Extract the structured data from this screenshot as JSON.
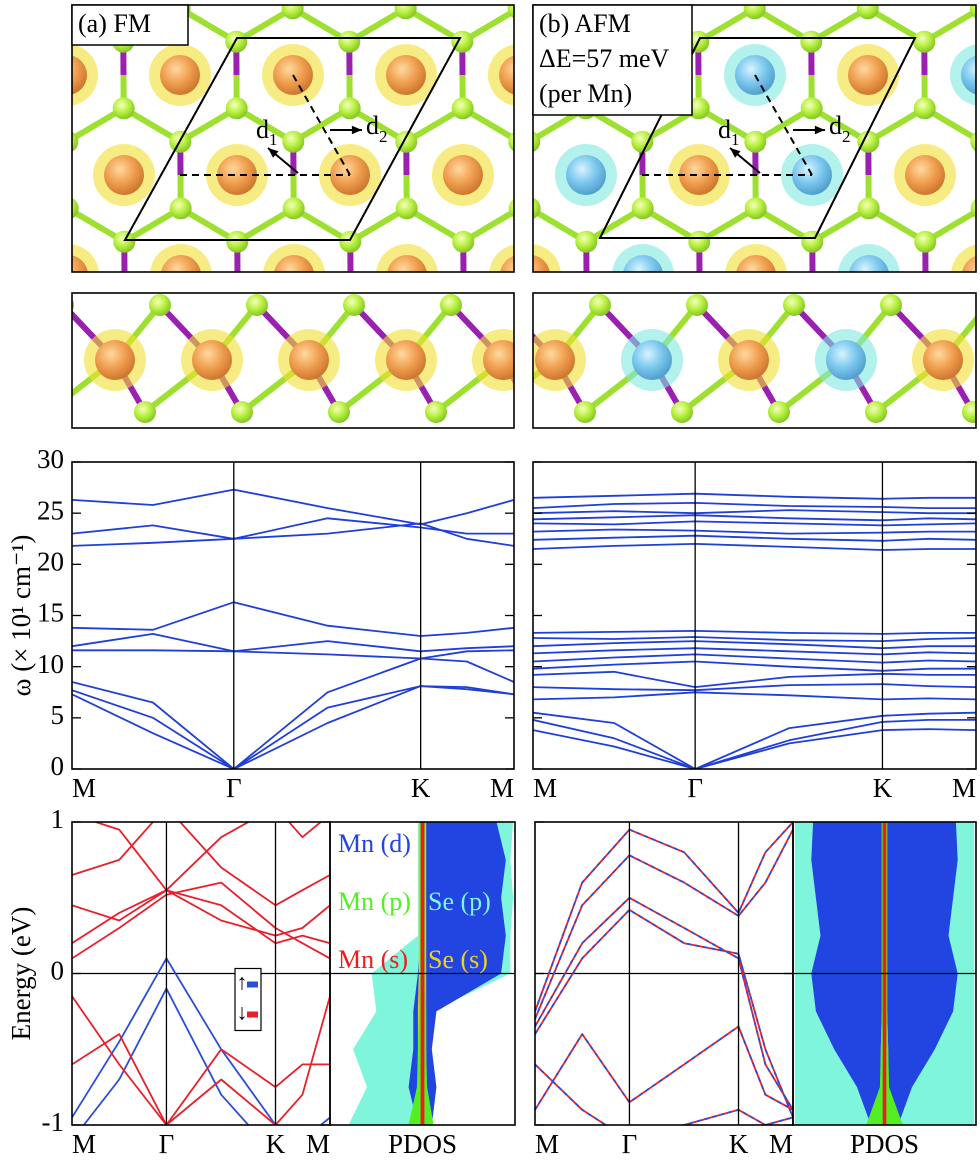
{
  "structures": {
    "fm": {
      "label": "(a) FM",
      "bond_labels": [
        {
          "text": "d",
          "sub": "1"
        },
        {
          "text": "d",
          "sub": "2"
        }
      ]
    },
    "afm": {
      "label": "(b) AFM",
      "energy": "ΔE=57 meV",
      "note": "(per Mn)",
      "bond_labels": [
        {
          "text": "d",
          "sub": "1"
        },
        {
          "text": "d",
          "sub": "2"
        }
      ]
    }
  },
  "chart_data": [
    {
      "type": "line",
      "ylabel": "ω (× 10¹ cm⁻¹)",
      "color": "#1f3fd8",
      "x": [
        0,
        0.5,
        1,
        1.58,
        2.155,
        2.44,
        2.732
      ],
      "xlim": [
        0,
        2.732
      ],
      "xticks": [
        {
          "value": 0,
          "label": "M"
        },
        {
          "value": 1,
          "label": "Γ"
        },
        {
          "value": 2.155,
          "label": "K"
        },
        {
          "value": 2.732,
          "label": "M"
        }
      ],
      "ylim": [
        0,
        30
      ],
      "yticks": [
        0,
        5,
        10,
        15,
        20,
        25,
        30
      ],
      "series": [
        {
          "values": [
            26.3,
            25.8,
            27.3,
            25.5,
            23.9,
            25.0,
            26.3
          ]
        },
        {
          "values": [
            23.0,
            23.8,
            22.5,
            24.5,
            23.6,
            23.0,
            23.0
          ]
        },
        {
          "values": [
            21.8,
            22.1,
            22.5,
            23.0,
            24.0,
            22.5,
            21.8
          ]
        },
        {
          "values": [
            13.8,
            13.6,
            16.3,
            14.0,
            13.0,
            13.3,
            13.8
          ]
        },
        {
          "values": [
            12.0,
            13.2,
            11.5,
            12.5,
            11.5,
            11.8,
            12.0
          ]
        },
        {
          "values": [
            11.6,
            11.6,
            11.5,
            11.2,
            10.8,
            11.5,
            11.6
          ]
        },
        {
          "values": [
            8.5,
            6.5,
            0,
            7.5,
            10.8,
            10.5,
            8.5
          ]
        },
        {
          "values": [
            7.7,
            5.0,
            0,
            6.0,
            8.1,
            8.0,
            7.3
          ]
        },
        {
          "values": [
            7.3,
            3.5,
            0,
            4.5,
            8.1,
            7.8,
            7.3
          ]
        }
      ]
    },
    {
      "type": "line",
      "color": "#1f3fd8",
      "x": [
        0,
        0.5,
        1,
        1.58,
        2.155,
        2.44,
        2.732
      ],
      "xlim": [
        0,
        2.732
      ],
      "xticks": [
        {
          "value": 0,
          "label": "M"
        },
        {
          "value": 1,
          "label": "Γ"
        },
        {
          "value": 2.155,
          "label": "K"
        },
        {
          "value": 2.732,
          "label": "M"
        }
      ],
      "ylim": [
        0,
        30
      ],
      "yticks": [
        0,
        5,
        10,
        15,
        20,
        25,
        30
      ],
      "series": [
        {
          "values": [
            26.5,
            26.7,
            26.9,
            26.6,
            26.4,
            26.5,
            26.5
          ]
        },
        {
          "values": [
            25.5,
            25.9,
            26.0,
            25.7,
            25.6,
            25.5,
            25.5
          ]
        },
        {
          "values": [
            25.0,
            25.2,
            25.0,
            25.3,
            25.1,
            25.0,
            25.0
          ]
        },
        {
          "values": [
            24.4,
            24.6,
            24.8,
            24.5,
            24.3,
            24.5,
            24.4
          ]
        },
        {
          "values": [
            24.0,
            23.9,
            24.2,
            24.0,
            23.8,
            23.9,
            24.0
          ]
        },
        {
          "values": [
            23.2,
            23.4,
            23.3,
            23.0,
            23.1,
            23.2,
            23.2
          ]
        },
        {
          "values": [
            22.4,
            22.6,
            22.8,
            22.5,
            22.3,
            22.5,
            22.4
          ]
        },
        {
          "values": [
            21.5,
            21.8,
            22.0,
            21.7,
            21.4,
            21.5,
            21.5
          ]
        },
        {
          "values": [
            13.3,
            13.4,
            13.5,
            13.3,
            13.2,
            13.3,
            13.3
          ]
        },
        {
          "values": [
            12.8,
            12.7,
            12.9,
            12.6,
            12.5,
            12.7,
            12.8
          ]
        },
        {
          "values": [
            12.0,
            12.3,
            12.5,
            12.2,
            11.8,
            12.0,
            12.0
          ]
        },
        {
          "values": [
            11.3,
            11.6,
            11.8,
            11.5,
            11.2,
            11.4,
            11.3
          ]
        },
        {
          "values": [
            10.5,
            10.9,
            11.2,
            10.8,
            10.4,
            10.6,
            10.5
          ]
        },
        {
          "values": [
            9.8,
            10.2,
            10.5,
            10.0,
            9.6,
            9.8,
            9.8
          ]
        },
        {
          "values": [
            9.2,
            9.5,
            8.0,
            9.0,
            9.3,
            9.2,
            9.2
          ]
        },
        {
          "values": [
            8.0,
            7.8,
            7.7,
            8.2,
            8.3,
            8.1,
            8.0
          ]
        },
        {
          "values": [
            6.8,
            7.0,
            7.5,
            7.2,
            6.8,
            6.9,
            6.8
          ]
        },
        {
          "values": [
            5.5,
            4.5,
            0,
            4.0,
            5.2,
            5.4,
            5.5
          ]
        },
        {
          "values": [
            4.8,
            3.0,
            0,
            2.8,
            4.6,
            4.8,
            4.8
          ]
        },
        {
          "values": [
            3.8,
            2.2,
            0,
            2.5,
            3.8,
            3.9,
            3.8
          ]
        }
      ]
    },
    {
      "type": "bands",
      "ylabel": "Energy (eV)",
      "legend": "center right",
      "fermi_level": 0,
      "x": [
        0,
        0.5,
        1,
        1.58,
        2.155,
        2.44,
        2.732
      ],
      "xlim": [
        0,
        2.732
      ],
      "xticks": [
        {
          "value": 0,
          "label": "M"
        },
        {
          "value": 1,
          "label": "Γ"
        },
        {
          "value": 2.155,
          "label": "K"
        },
        {
          "value": 2.732,
          "label": "M"
        }
      ],
      "ylim": [
        -1,
        1
      ],
      "yticks": [
        -1,
        0,
        1
      ],
      "series": [
        {
          "name": "↑",
          "color": "#2a4ed8",
          "bands": [
            [
              -0.95,
              -0.45,
              0.1,
              -0.5,
              -1.0,
              -1.1,
              -0.95
            ],
            [
              -1.1,
              -0.7,
              -0.1,
              -0.8,
              -1.2,
              -1.2,
              -1.1
            ]
          ]
        },
        {
          "name": "↓",
          "color": "#e8202a",
          "bands": [
            [
              0.65,
              0.75,
              1.1,
              0.7,
              0.45,
              0.55,
              0.65
            ],
            [
              0.45,
              0.35,
              0.55,
              0.35,
              0.25,
              0.3,
              0.45
            ],
            [
              0.2,
              0.4,
              0.55,
              0.45,
              0.2,
              0.25,
              0.2
            ],
            [
              0.1,
              0.3,
              0.52,
              0.6,
              0.3,
              0.2,
              0.1
            ],
            [
              -0.6,
              -0.4,
              -1.0,
              -0.5,
              -0.75,
              -0.6,
              -0.6
            ],
            [
              -0.15,
              -0.6,
              -1.0,
              -0.7,
              -1.0,
              -0.8,
              -0.15
            ],
            [
              1.05,
              0.95,
              0.55,
              0.9,
              1.1,
              0.9,
              1.05
            ]
          ]
        }
      ]
    },
    {
      "type": "area",
      "xlabel": "PDOS",
      "fermi_level": 0,
      "xlim": [
        -1,
        1
      ],
      "ylim": [
        -1,
        1
      ],
      "energy": [
        -1,
        -0.75,
        -0.5,
        -0.25,
        0,
        0.25,
        0.5,
        0.75,
        1
      ],
      "series": [
        {
          "name": "Mn (d)",
          "color": "#2244e0",
          "up": [
            0.1,
            0.15,
            0.1,
            0.15,
            0.85,
            0.9,
            0.85,
            0.9,
            0.8
          ],
          "down": [
            0.05,
            0.15,
            0.1,
            0.1,
            0.05,
            0.02,
            0.02,
            0.02,
            0.02
          ]
        },
        {
          "name": "Mn (p)",
          "color": "#55ee22",
          "up": [
            0.12,
            0.05,
            0.04,
            0.04,
            0.03,
            0.03,
            0.03,
            0.03,
            0.03
          ],
          "down": [
            0.15,
            0.06,
            0.05,
            0.04,
            0.03,
            0.03,
            0.03,
            0.03,
            0.03
          ]
        },
        {
          "name": "Mn (s)",
          "color": "#ee1c1c",
          "up": [
            0.02,
            0.02,
            0.02,
            0.02,
            0.02,
            0.02,
            0.02,
            0.02,
            0.02
          ],
          "down": [
            0.02,
            0.02,
            0.02,
            0.02,
            0.02,
            0.02,
            0.02,
            0.02,
            0.02
          ]
        },
        {
          "name": "Se (p)",
          "color": "#7ff5dc",
          "up": [
            0.1,
            0.15,
            0.1,
            0.1,
            0.95,
            0.95,
            0.98,
            0.95,
            0.98
          ],
          "down": [
            0.8,
            0.6,
            0.75,
            0.5,
            0.55,
            0.05,
            0.05,
            0.05,
            0.05
          ]
        },
        {
          "name": "Se (s)",
          "color": "#f0d020",
          "up": [
            0.04,
            0.04,
            0.04,
            0.04,
            0.04,
            0.04,
            0.04,
            0.04,
            0.04
          ],
          "down": [
            0.05,
            0.05,
            0.05,
            0.05,
            0.04,
            0.04,
            0.04,
            0.04,
            0.04
          ]
        }
      ]
    },
    {
      "type": "bands",
      "fermi_level": 0,
      "x": [
        0,
        0.5,
        1,
        1.58,
        2.155,
        2.44,
        2.732
      ],
      "xlim": [
        0,
        2.732
      ],
      "xticks": [
        {
          "value": 0,
          "label": "M"
        },
        {
          "value": 1,
          "label": "Γ"
        },
        {
          "value": 2.155,
          "label": "K"
        },
        {
          "value": 2.732,
          "label": "M"
        }
      ],
      "ylim": [
        -1,
        1
      ],
      "yticks": [
        -1,
        0,
        1
      ],
      "series": [
        {
          "color": "#e8202a",
          "bands": [
            [
              -0.25,
              0.6,
              0.95,
              0.8,
              0.4,
              0.8,
              1.0
            ],
            [
              -0.3,
              0.45,
              0.78,
              0.6,
              0.38,
              0.6,
              0.95
            ],
            [
              -0.35,
              0.2,
              0.5,
              0.3,
              0.1,
              -0.6,
              -0.9
            ],
            [
              -0.4,
              0.1,
              0.42,
              0.2,
              0.13,
              -0.5,
              -0.95
            ],
            [
              -0.9,
              -0.4,
              -0.85,
              -0.6,
              -0.35,
              -0.8,
              -0.9
            ],
            [
              -0.6,
              -0.9,
              -1.1,
              -1.0,
              -0.9,
              -1.0,
              -0.95
            ]
          ]
        },
        {
          "color": "#2a4ed8",
          "dashed": true,
          "bands": [
            [
              -0.25,
              0.6,
              0.95,
              0.8,
              0.4,
              0.8,
              1.0
            ],
            [
              -0.3,
              0.45,
              0.78,
              0.6,
              0.38,
              0.6,
              0.95
            ],
            [
              -0.35,
              0.2,
              0.5,
              0.3,
              0.1,
              -0.6,
              -0.9
            ],
            [
              -0.4,
              0.1,
              0.42,
              0.2,
              0.13,
              -0.5,
              -0.95
            ],
            [
              -0.9,
              -0.4,
              -0.85,
              -0.6,
              -0.35,
              -0.8,
              -0.9
            ],
            [
              -0.6,
              -0.9,
              -1.1,
              -1.0,
              -0.9,
              -1.0,
              -0.95
            ]
          ]
        }
      ]
    },
    {
      "type": "area",
      "xlabel": "PDOS",
      "fermi_level": 0,
      "xlim": [
        -1,
        1
      ],
      "ylim": [
        -1,
        1
      ],
      "energy": [
        -1,
        -0.75,
        -0.5,
        -0.25,
        0,
        0.25,
        0.5,
        0.75,
        1
      ],
      "series": [
        {
          "color": "#2244e0",
          "up": [
            0.15,
            0.3,
            0.55,
            0.75,
            0.8,
            0.7,
            0.75,
            0.8,
            0.78
          ],
          "down": [
            0.15,
            0.3,
            0.55,
            0.75,
            0.8,
            0.7,
            0.75,
            0.8,
            0.78
          ]
        },
        {
          "color": "#55ee22",
          "up": [
            0.2,
            0.05,
            0.04,
            0.03,
            0.03,
            0.03,
            0.03,
            0.03,
            0.03
          ],
          "down": [
            0.2,
            0.05,
            0.04,
            0.03,
            0.03,
            0.03,
            0.03,
            0.03,
            0.03
          ]
        },
        {
          "color": "#ee1c1c",
          "up": [
            0.02,
            0.02,
            0.02,
            0.02,
            0.02,
            0.02,
            0.02,
            0.02,
            0.02
          ],
          "down": [
            0.02,
            0.02,
            0.02,
            0.02,
            0.02,
            0.02,
            0.02,
            0.02,
            0.02
          ]
        },
        {
          "color": "#7ff5dc",
          "up": [
            0.98,
            0.98,
            0.98,
            0.98,
            0.98,
            0.98,
            0.98,
            0.98,
            0.98
          ],
          "down": [
            0.98,
            0.98,
            0.98,
            0.98,
            0.98,
            0.98,
            0.98,
            0.98,
            0.98
          ]
        },
        {
          "color": "#f0d020",
          "up": [
            0.05,
            0.04,
            0.04,
            0.03,
            0.03,
            0.03,
            0.03,
            0.03,
            0.03
          ],
          "down": [
            0.05,
            0.04,
            0.04,
            0.03,
            0.03,
            0.03,
            0.03,
            0.03,
            0.03
          ]
        }
      ]
    }
  ]
}
